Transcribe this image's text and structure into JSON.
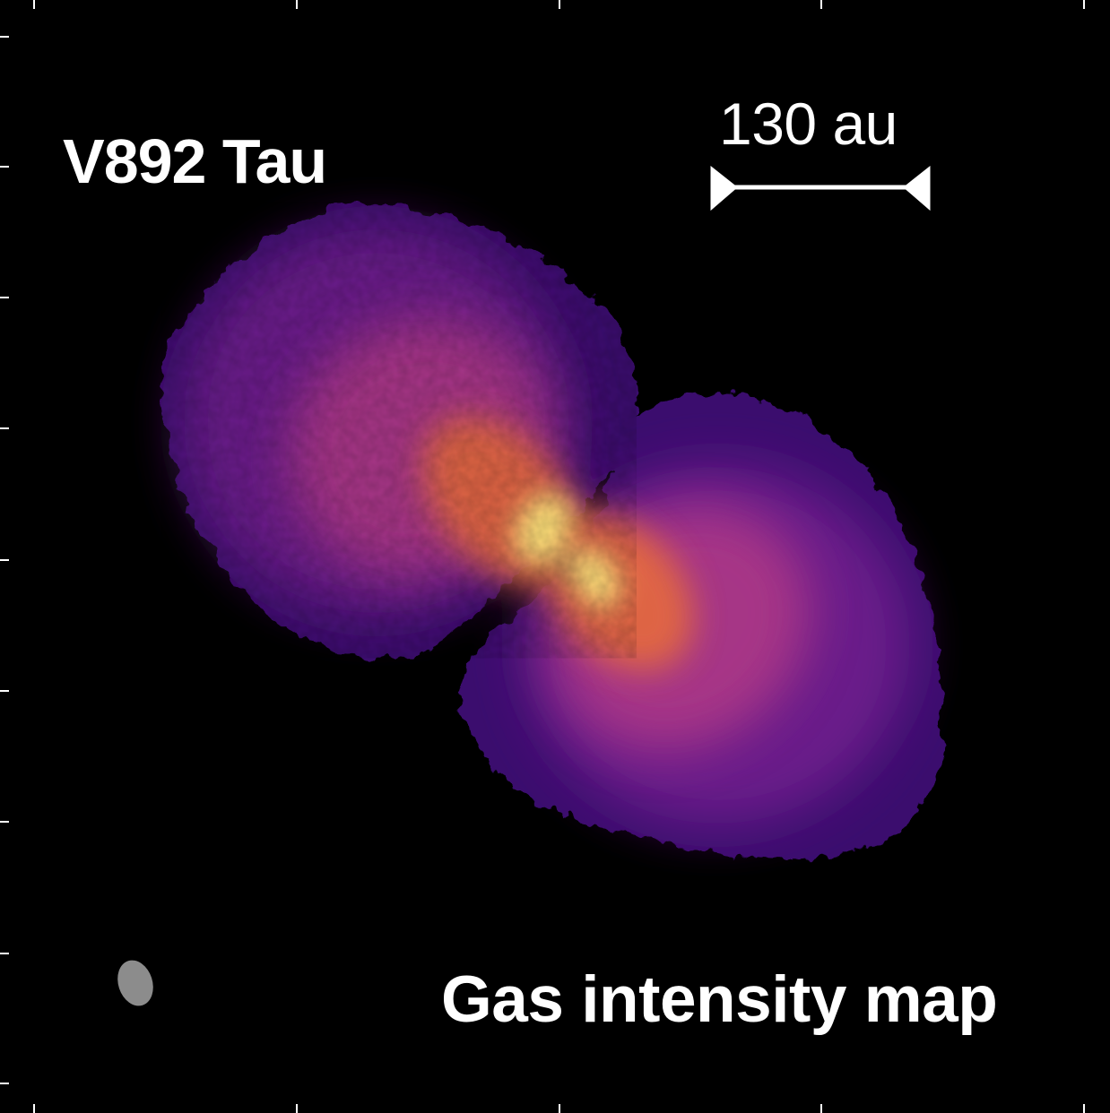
{
  "object_name": "V892 Tau",
  "map_title": "Gas intensity map",
  "scale_bar": {
    "label": "130 au"
  },
  "colormap": {
    "background": "#000000",
    "faint": "#3a0f6e",
    "low": "#6a1c8a",
    "mid": "#b23a86",
    "high": "#e56a3c",
    "peak": "#ffe27a",
    "beam": "#8c8c8c"
  }
}
